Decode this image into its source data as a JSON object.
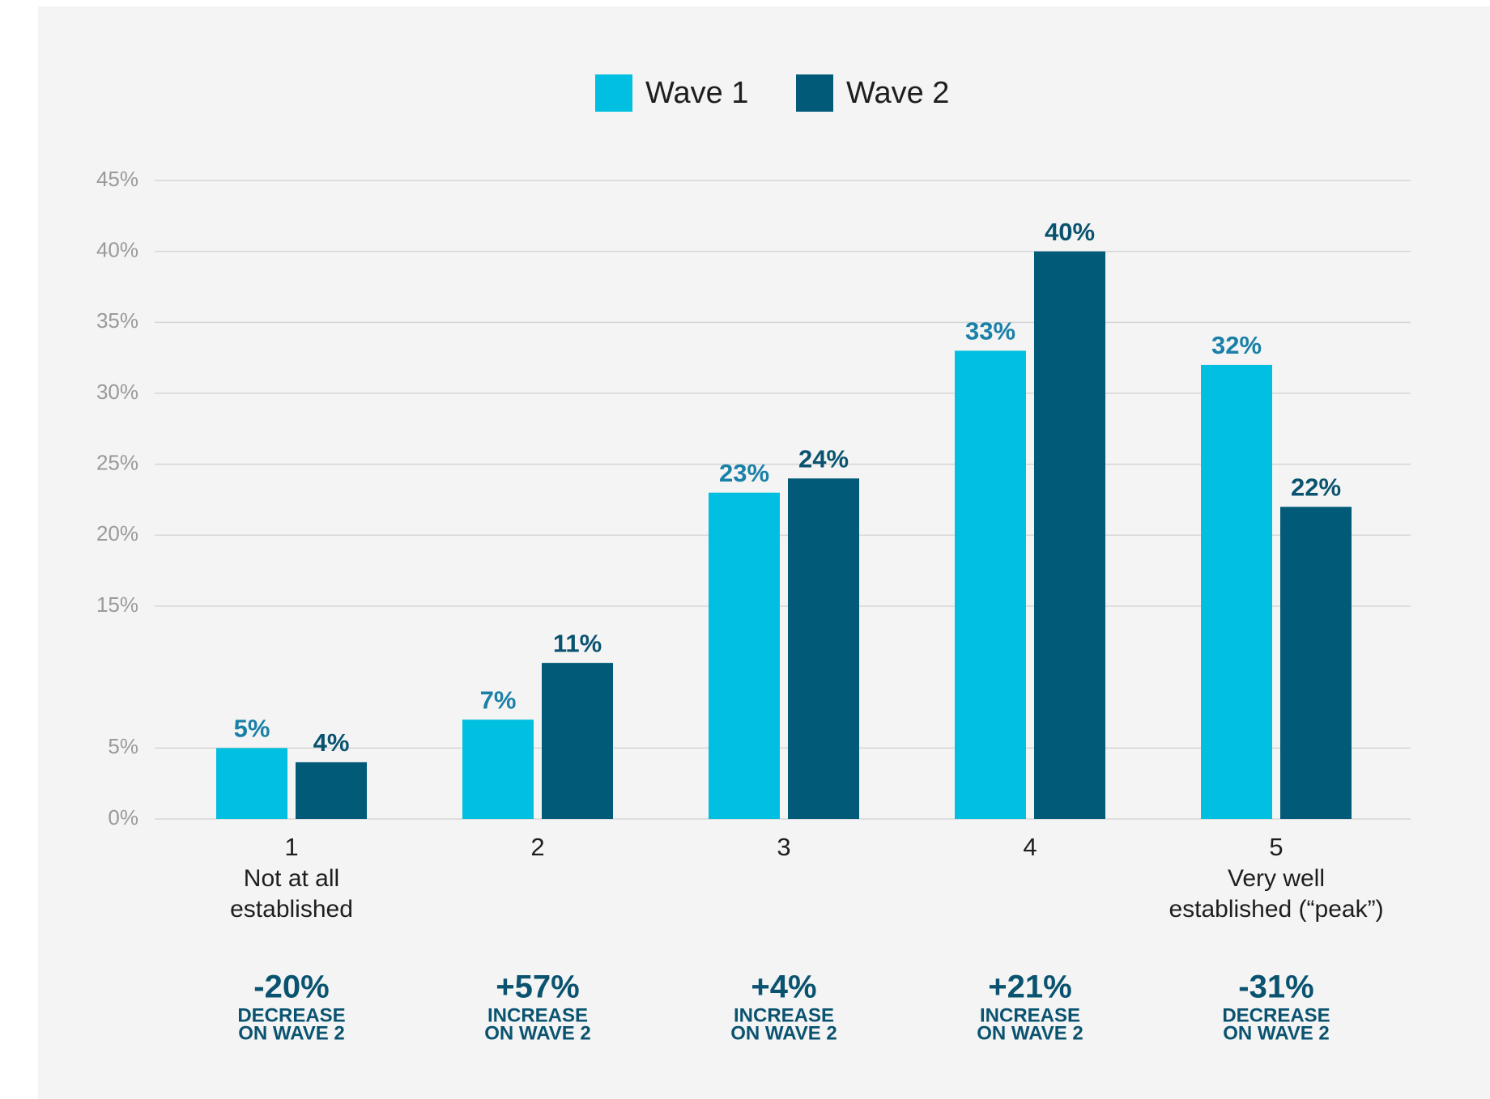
{
  "chart_data": {
    "type": "bar",
    "categories": [
      "1",
      "2",
      "3",
      "4",
      "5"
    ],
    "category_descriptions": [
      [
        "Not at all",
        "established"
      ],
      [],
      [],
      [],
      [
        "Very well",
        "established (“peak”)"
      ]
    ],
    "series": [
      {
        "name": "Wave 1",
        "color": "#00bfe0",
        "label_color": "#1a80a8",
        "values": [
          5,
          7,
          23,
          33,
          32
        ],
        "value_labels": [
          "5%",
          "7%",
          "23%",
          "33%",
          "32%"
        ]
      },
      {
        "name": "Wave 2",
        "color": "#005a78",
        "label_color": "#0a5370",
        "values": [
          4,
          11,
          24,
          40,
          22
        ],
        "value_labels": [
          "4%",
          "11%",
          "24%",
          "40%",
          "22%"
        ]
      }
    ],
    "ylim": [
      0,
      45
    ],
    "yticks": [
      {
        "value": 0,
        "label": "0%"
      },
      {
        "value": 5,
        "label": "5%"
      },
      {
        "value": 15,
        "label": "15%"
      },
      {
        "value": 20,
        "label": "20%"
      },
      {
        "value": 25,
        "label": "25%"
      },
      {
        "value": 30,
        "label": "30%"
      },
      {
        "value": 35,
        "label": "35%"
      },
      {
        "value": 40,
        "label": "40%"
      },
      {
        "value": 45,
        "label": "45%"
      }
    ],
    "grid": true,
    "legend": "top",
    "annotations": [
      {
        "change": "-20%",
        "note": [
          "DECREASE",
          "ON WAVE 2"
        ]
      },
      {
        "change": "+57%",
        "note": [
          "INCREASE",
          "ON WAVE 2"
        ]
      },
      {
        "change": "+4%",
        "note": [
          "INCREASE",
          "ON WAVE 2"
        ]
      },
      {
        "change": "+21%",
        "note": [
          "INCREASE",
          "ON WAVE 2"
        ]
      },
      {
        "change": "-31%",
        "note": [
          "DECREASE",
          "ON WAVE 2"
        ]
      }
    ]
  }
}
